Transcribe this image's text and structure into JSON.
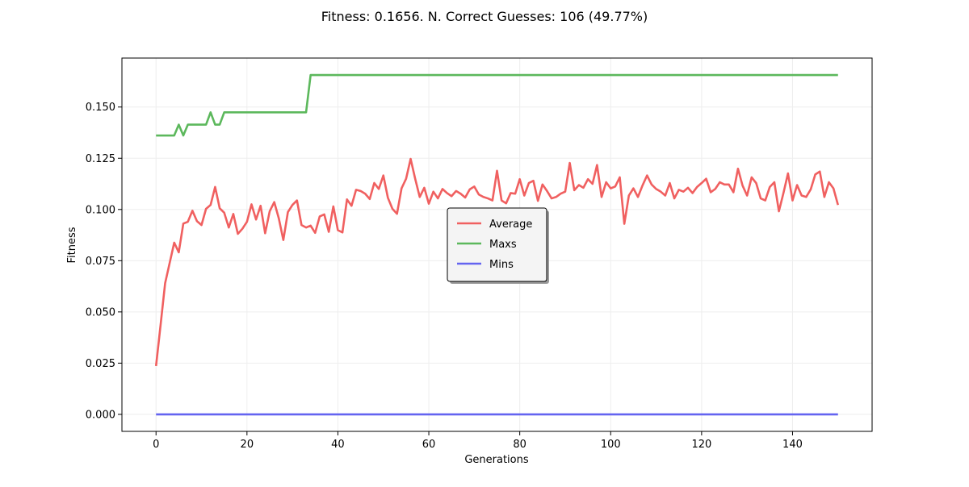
{
  "chart_data": {
    "type": "line",
    "title": "Fitness: 0.1656. N. Correct Guesses: 106 (49.77%)",
    "xlabel": "Generations",
    "ylabel": "Fitness",
    "xlim": [
      -7.5,
      157.5
    ],
    "ylim": [
      -0.0083,
      0.1739
    ],
    "xticks": [
      0,
      20,
      40,
      60,
      80,
      100,
      120,
      140
    ],
    "xtick_labels": [
      "0",
      "20",
      "40",
      "60",
      "80",
      "100",
      "120",
      "140"
    ],
    "yticks": [
      0.0,
      0.025,
      0.05,
      0.075,
      0.1,
      0.125,
      0.15
    ],
    "ytick_labels": [
      "0.000",
      "0.025",
      "0.050",
      "0.075",
      "0.100",
      "0.125",
      "0.150"
    ],
    "grid": true,
    "legend_position": "center",
    "series": [
      {
        "name": "Average",
        "color": "#f06060",
        "values": [
          0.0236,
          0.0436,
          0.064,
          0.0739,
          0.0838,
          0.0791,
          0.0931,
          0.094,
          0.0994,
          0.0943,
          0.0924,
          0.1003,
          0.1022,
          0.111,
          0.1006,
          0.0984,
          0.0912,
          0.0978,
          0.0881,
          0.0906,
          0.094,
          0.1025,
          0.0951,
          0.1018,
          0.0884,
          0.0991,
          0.1036,
          0.0957,
          0.0851,
          0.0987,
          0.1022,
          0.1044,
          0.0924,
          0.0912,
          0.0921,
          0.0886,
          0.0966,
          0.0976,
          0.0891,
          0.1015,
          0.0899,
          0.0888,
          0.1049,
          0.1018,
          0.1096,
          0.109,
          0.1077,
          0.1051,
          0.1129,
          0.11,
          0.1166,
          0.1057,
          0.1003,
          0.0979,
          0.1103,
          0.115,
          0.1247,
          0.115,
          0.1061,
          0.1106,
          0.1028,
          0.1087,
          0.1054,
          0.11,
          0.108,
          0.1065,
          0.109,
          0.1077,
          0.1058,
          0.1098,
          0.1112,
          0.1073,
          0.1061,
          0.1054,
          0.1044,
          0.1189,
          0.1044,
          0.103,
          0.108,
          0.1077,
          0.1148,
          0.1068,
          0.1129,
          0.114,
          0.1042,
          0.1122,
          0.109,
          0.1054,
          0.1061,
          0.1077,
          0.1087,
          0.1227,
          0.1094,
          0.1119,
          0.1106,
          0.1148,
          0.1125,
          0.1217,
          0.1061,
          0.1133,
          0.1103,
          0.1112,
          0.1157,
          0.093,
          0.1068,
          0.1103,
          0.1061,
          0.1117,
          0.1166,
          0.1122,
          0.11,
          0.1087,
          0.1068,
          0.1129,
          0.1054,
          0.1096,
          0.1087,
          0.1106,
          0.108,
          0.111,
          0.1129,
          0.115,
          0.1084,
          0.11,
          0.1133,
          0.1122,
          0.1122,
          0.1084,
          0.1199,
          0.1117,
          0.1068,
          0.1157,
          0.1129,
          0.1054,
          0.1044,
          0.111,
          0.1133,
          0.0991,
          0.108,
          0.1176,
          0.1044,
          0.1119,
          0.1068,
          0.1061,
          0.1098,
          0.1171,
          0.1185,
          0.1061,
          0.1133,
          0.1103,
          0.1022
        ]
      },
      {
        "name": "Maxs",
        "color": "#5cb85c",
        "values": [
          0.1361,
          0.1361,
          0.1361,
          0.1361,
          0.1361,
          0.1414,
          0.1361,
          0.1414,
          0.1414,
          0.1414,
          0.1414,
          0.1414,
          0.1474,
          0.1414,
          0.1414,
          0.1474,
          0.1474,
          0.1474,
          0.1474,
          0.1474,
          0.1474,
          0.1474,
          0.1474,
          0.1474,
          0.1474,
          0.1474,
          0.1474,
          0.1474,
          0.1474,
          0.1474,
          0.1474,
          0.1474,
          0.1474,
          0.1474,
          0.1656,
          0.1656,
          0.1656,
          0.1656,
          0.1656,
          0.1656,
          0.1656,
          0.1656,
          0.1656,
          0.1656,
          0.1656,
          0.1656,
          0.1656,
          0.1656,
          0.1656,
          0.1656,
          0.1656,
          0.1656,
          0.1656,
          0.1656,
          0.1656,
          0.1656,
          0.1656,
          0.1656,
          0.1656,
          0.1656,
          0.1656,
          0.1656,
          0.1656,
          0.1656,
          0.1656,
          0.1656,
          0.1656,
          0.1656,
          0.1656,
          0.1656,
          0.1656,
          0.1656,
          0.1656,
          0.1656,
          0.1656,
          0.1656,
          0.1656,
          0.1656,
          0.1656,
          0.1656,
          0.1656,
          0.1656,
          0.1656,
          0.1656,
          0.1656,
          0.1656,
          0.1656,
          0.1656,
          0.1656,
          0.1656,
          0.1656,
          0.1656,
          0.1656,
          0.1656,
          0.1656,
          0.1656,
          0.1656,
          0.1656,
          0.1656,
          0.1656,
          0.1656,
          0.1656,
          0.1656,
          0.1656,
          0.1656,
          0.1656,
          0.1656,
          0.1656,
          0.1656,
          0.1656,
          0.1656,
          0.1656,
          0.1656,
          0.1656,
          0.1656,
          0.1656,
          0.1656,
          0.1656,
          0.1656,
          0.1656,
          0.1656,
          0.1656,
          0.1656,
          0.1656,
          0.1656,
          0.1656,
          0.1656,
          0.1656,
          0.1656,
          0.1656,
          0.1656,
          0.1656,
          0.1656,
          0.1656,
          0.1656,
          0.1656,
          0.1656,
          0.1656,
          0.1656,
          0.1656,
          0.1656,
          0.1656,
          0.1656,
          0.1656,
          0.1656,
          0.1656,
          0.1656,
          0.1656,
          0.1656,
          0.1656,
          0.1656
        ]
      },
      {
        "name": "Mins",
        "color": "#6464f0",
        "values": "zeros",
        "constant": 0.0,
        "note_points": 151
      }
    ]
  }
}
